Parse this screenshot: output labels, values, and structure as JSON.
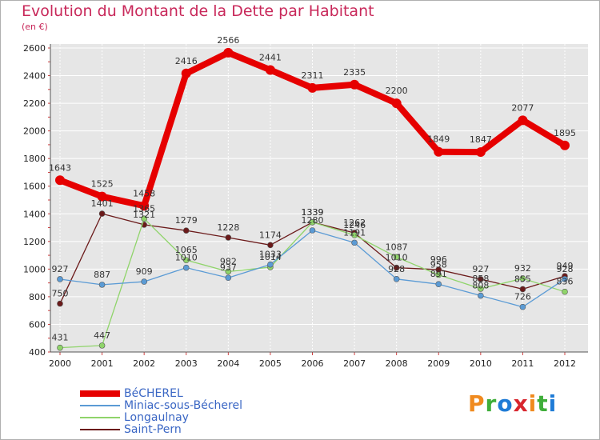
{
  "title": "Evolution du Montant de la Dette par Habitant",
  "subtitle": "(en €)",
  "logo": {
    "text": "Proxiti",
    "colors": [
      "#f08a1e",
      "#3fae3a",
      "#1e7bd6",
      "#d8262e",
      "#f08a1e",
      "#3fae3a",
      "#1e7bd6"
    ]
  },
  "chart_data": {
    "type": "line",
    "title": "Evolution du Montant de la Dette par Habitant",
    "subtitle": "(en €)",
    "xlabel": "",
    "ylabel": "",
    "x": [
      "2000",
      "2001",
      "2002",
      "2003",
      "2004",
      "2005",
      "2006",
      "2007",
      "2008",
      "2009",
      "2010",
      "2011",
      "2012"
    ],
    "yticks": [
      400,
      600,
      800,
      1000,
      1200,
      1400,
      1600,
      1800,
      2000,
      2200,
      2400,
      2600
    ],
    "ylim": [
      400,
      2600
    ],
    "grid": "horizontal",
    "legend_position": "bottom-left",
    "series": [
      {
        "name": "BéCHEREL",
        "color": "#e60000",
        "values": [
          1643,
          1525,
          1458,
          2416,
          2566,
          2441,
          2311,
          2335,
          2200,
          1849,
          1847,
          2077,
          1895
        ],
        "labels": [
          "1643",
          "1525",
          "1458",
          "2416",
          "2566",
          "2441",
          "2311",
          "2335",
          "2200",
          "1849",
          "1847",
          "2077",
          "1895"
        ]
      },
      {
        "name": "Miniac-sous-Bécherel",
        "color": "#5b9bd5",
        "values": [
          927,
          887,
          909,
          1010,
          937,
          1033,
          1280,
          1191,
          928,
          891,
          808,
          726,
          928
        ],
        "labels": [
          "927",
          "887",
          "909",
          "1010",
          "937",
          "1033",
          "1280",
          "1191",
          "928",
          "891",
          "808",
          "726",
          "928"
        ]
      },
      {
        "name": "Longaulnay",
        "color": "#8fd46a",
        "values": [
          431,
          447,
          1365,
          1065,
          982,
          1014,
          1339,
          1246,
          1087,
          958,
          858,
          932,
          836
        ],
        "labels": [
          "431",
          "447",
          "1365",
          "1065",
          "982",
          "1014",
          "1339",
          "1246",
          "1087",
          "958",
          "858",
          "932",
          "836"
        ]
      },
      {
        "name": "Saint-Pern",
        "color": "#6b1a1a",
        "values": [
          750,
          1401,
          1321,
          1279,
          1228,
          1174,
          1339,
          1262,
          1010,
          996,
          927,
          855,
          949
        ],
        "labels": [
          "750",
          "1401",
          "1321",
          "1279",
          "1228",
          "1174",
          "1339",
          "1262",
          "1010",
          "996",
          "927",
          "855",
          "949"
        ]
      }
    ]
  }
}
